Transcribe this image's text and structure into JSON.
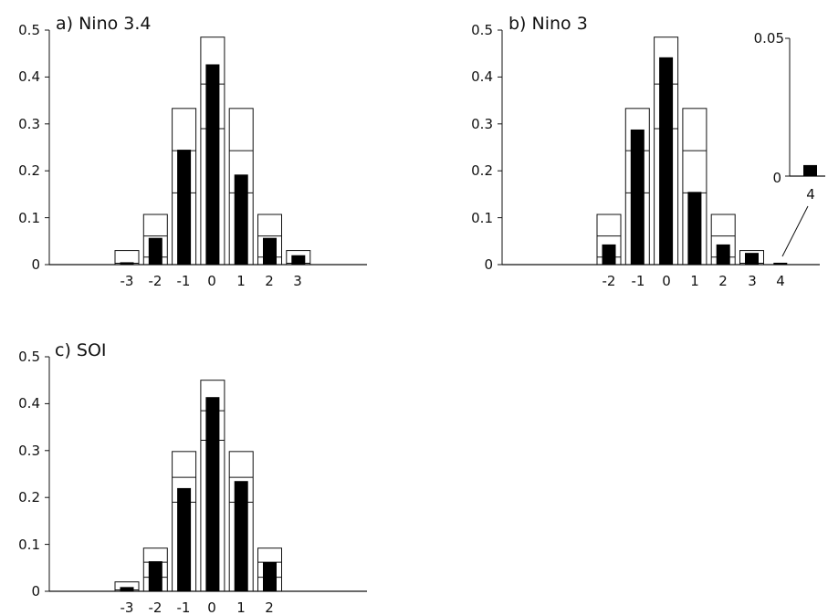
{
  "chart_data": [
    {
      "type": "bar",
      "title": "a) Nino 3.4",
      "yticks": [
        "0",
        "0.1",
        "0.2",
        "0.3",
        "0.4",
        "0.5"
      ],
      "ylim": [
        0,
        0.5
      ],
      "x_tick_labels": [
        "-3",
        "-2",
        "-1",
        "0",
        "1",
        "2",
        "3"
      ],
      "categories": [
        -3,
        -2,
        -1,
        0,
        1,
        2,
        3
      ],
      "series": [
        {
          "values": [
            0.005,
            0.057,
            0.245,
            0.427,
            0.192,
            0.057,
            0.02
          ]
        }
      ],
      "envelope_upper": [
        0.03,
        0.107,
        0.333,
        0.485,
        0.333,
        0.107,
        0.03
      ],
      "envelope_middle": [
        0.003,
        0.061,
        0.243,
        0.385,
        0.243,
        0.061,
        0.003
      ],
      "envelope_lower": [
        0.0,
        0.016,
        0.153,
        0.29,
        0.153,
        0.016,
        0.0
      ],
      "grid": false
    },
    {
      "type": "bar",
      "title": "b)  Nino 3",
      "yticks": [
        "0",
        "0.1",
        "0.2",
        "0.3",
        "0.4",
        "0.5"
      ],
      "ylim": [
        0,
        0.5
      ],
      "x_tick_labels": [
        "-2",
        "-1",
        "0",
        "1",
        "2",
        "3",
        "4"
      ],
      "categories": [
        -2,
        -1,
        0,
        1,
        2,
        3,
        4
      ],
      "series": [
        {
          "values": [
            0.043,
            0.288,
            0.442,
            0.155,
            0.043,
            0.025,
            0.004
          ]
        }
      ],
      "envelope_upper": [
        0.107,
        0.333,
        0.485,
        0.333,
        0.107,
        0.03,
        null
      ],
      "envelope_middle": [
        0.061,
        0.243,
        0.385,
        0.243,
        0.061,
        0.003,
        null
      ],
      "envelope_lower": [
        0.016,
        0.153,
        0.29,
        0.153,
        0.016,
        0.0,
        null
      ],
      "inset": {
        "yticks": [
          "0",
          "0.05"
        ],
        "ylim": [
          0,
          0.05
        ],
        "x_tick_label": "4",
        "value": 0.004
      },
      "grid": false
    },
    {
      "type": "bar",
      "title": "c)  SOI",
      "yticks": [
        "0",
        "0.1",
        "0.2",
        "0.3",
        "0.4",
        "0.5"
      ],
      "ylim": [
        0,
        0.5
      ],
      "x_tick_labels": [
        "-3",
        "-2",
        "-1",
        "0",
        "1",
        "2"
      ],
      "categories": [
        -3,
        -2,
        -1,
        0,
        1,
        2
      ],
      "series": [
        {
          "values": [
            0.009,
            0.064,
            0.22,
            0.414,
            0.235,
            0.062
          ]
        }
      ],
      "envelope_upper": [
        0.02,
        0.092,
        0.298,
        0.45,
        0.298,
        0.092
      ],
      "envelope_middle": [
        0.003,
        0.062,
        0.243,
        0.385,
        0.243,
        0.062
      ],
      "envelope_lower": [
        0.0,
        0.03,
        0.19,
        0.322,
        0.19,
        0.03
      ],
      "grid": false
    }
  ]
}
